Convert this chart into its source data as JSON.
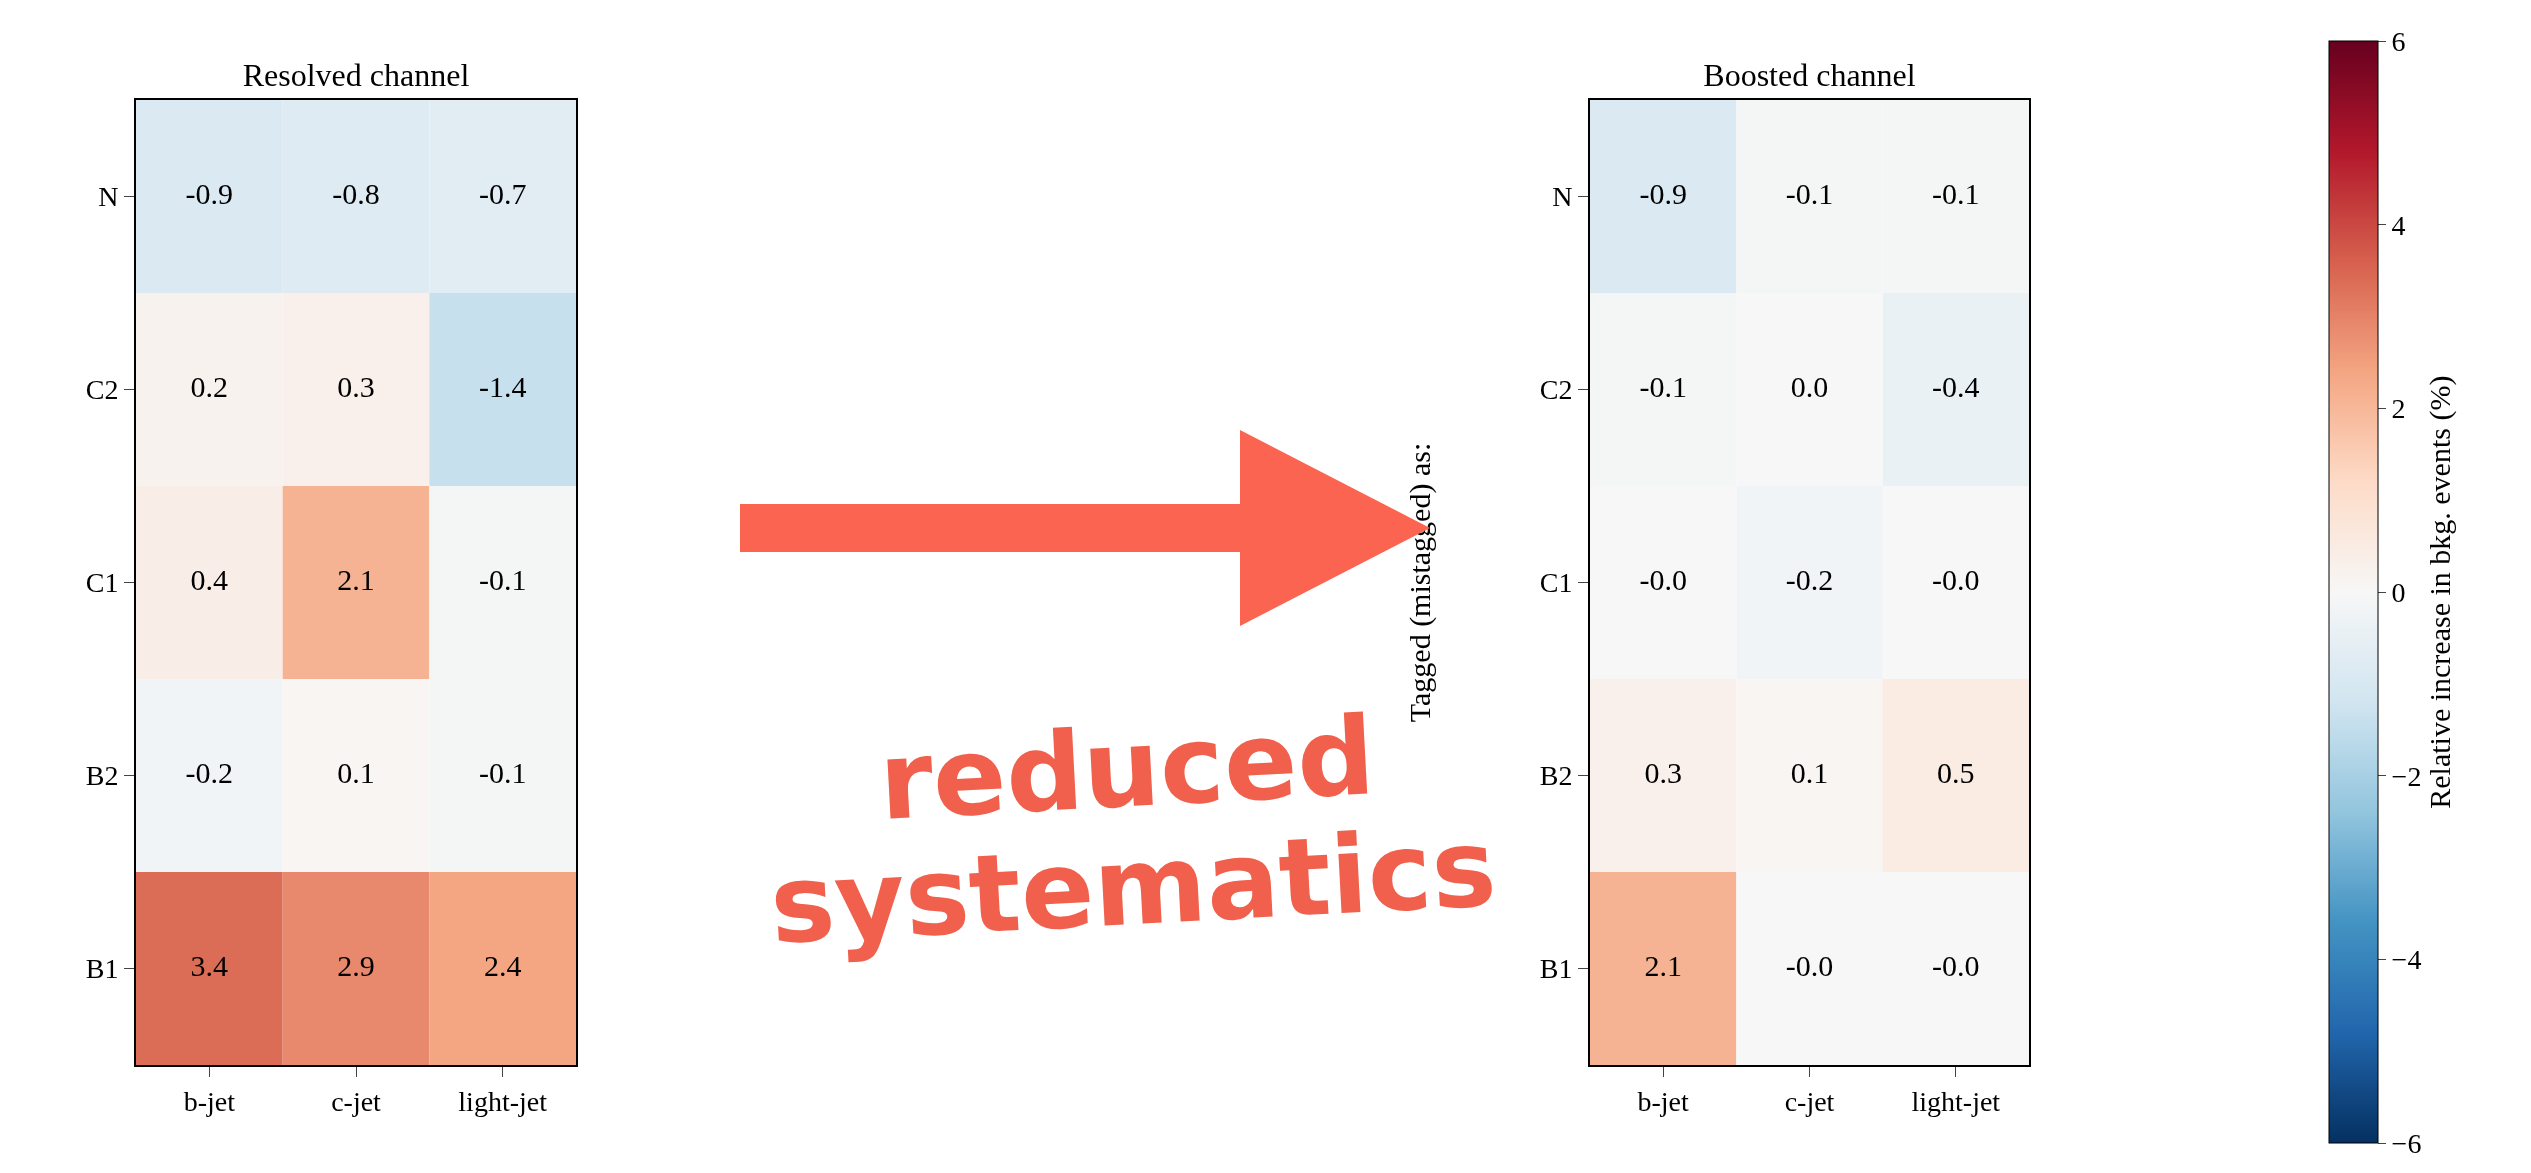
{
  "chart_data": [
    {
      "type": "heatmap",
      "title": "Resolved channel",
      "categories": [
        "b-jet",
        "c-jet",
        "light-jet"
      ],
      "y_categories": [
        "N",
        "C2",
        "C1",
        "B2",
        "B1"
      ],
      "cells": [
        [
          -0.9,
          -0.8,
          -0.7
        ],
        [
          0.2,
          0.3,
          -1.4
        ],
        [
          0.4,
          2.1,
          -0.1
        ],
        [
          -0.2,
          0.1,
          -0.1
        ],
        [
          3.4,
          2.9,
          2.4
        ]
      ],
      "cell_labels": [
        [
          "-0.9",
          "-0.8",
          "-0.7"
        ],
        [
          "0.2",
          "0.3",
          "-1.4"
        ],
        [
          "0.4",
          "2.1",
          "-0.1"
        ],
        [
          "-0.2",
          "0.1",
          "-0.1"
        ],
        [
          "3.4",
          "2.9",
          "2.4"
        ]
      ],
      "annotations": [
        "reduced systematics"
      ]
    },
    {
      "type": "heatmap",
      "title": "Boosted channel",
      "ylabel": "Tagged (mistagged) as:",
      "categories": [
        "b-jet",
        "c-jet",
        "light-jet"
      ],
      "y_categories": [
        "N",
        "C2",
        "C1",
        "B2",
        "B1"
      ],
      "cells": [
        [
          -0.9,
          -0.1,
          -0.1
        ],
        [
          -0.1,
          0.0,
          -0.4
        ],
        [
          -0.0,
          -0.2,
          -0.0
        ],
        [
          0.3,
          0.1,
          0.5
        ],
        [
          2.1,
          -0.0,
          -0.0
        ]
      ],
      "cell_labels": [
        [
          "-0.9",
          "-0.1",
          "-0.1"
        ],
        [
          "-0.1",
          "0.0",
          "-0.4"
        ],
        [
          "-0.0",
          "-0.2",
          "-0.0"
        ],
        [
          "0.3",
          "0.1",
          "0.5"
        ],
        [
          "2.1",
          "-0.0",
          "-0.0"
        ]
      ],
      "clabel": "Relative increase in bkg. events (%)",
      "clim": [
        -6,
        6
      ],
      "cticks": [
        {
          "value": -6,
          "label": "−6"
        },
        {
          "value": -4,
          "label": "−4"
        },
        {
          "value": -2,
          "label": "−2"
        },
        0,
        2,
        4,
        6
      ]
    }
  ]
}
